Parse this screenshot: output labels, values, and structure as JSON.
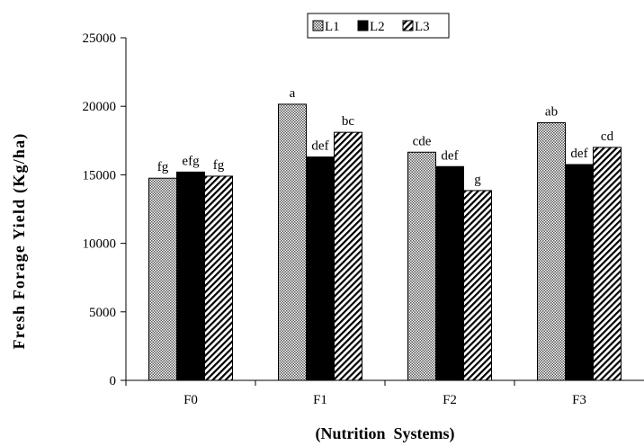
{
  "chart_data": {
    "type": "bar",
    "title": "",
    "xlabel": "(Nutrition  Systems)",
    "ylabel": "Fresh Forage Yield (Kg/ha)",
    "ylim": [
      0,
      25000
    ],
    "yticks": [
      0,
      5000,
      10000,
      15000,
      20000,
      25000
    ],
    "grid": false,
    "legend_position": "top",
    "categories": [
      "F0",
      "F1",
      "F2",
      "F3"
    ],
    "series": [
      {
        "name": "L1",
        "pattern": "dotted",
        "values": [
          14750,
          20150,
          16650,
          18800
        ],
        "labels": [
          "fg",
          "a",
          "cde",
          "ab"
        ]
      },
      {
        "name": "L2",
        "pattern": "solid",
        "values": [
          15200,
          16300,
          15600,
          15750
        ],
        "labels": [
          "efg",
          "def",
          "def",
          "def"
        ]
      },
      {
        "name": "L3",
        "pattern": "hatched",
        "values": [
          14900,
          18100,
          13850,
          17000
        ],
        "labels": [
          "fg",
          "bc",
          "g",
          "cd"
        ]
      }
    ]
  }
}
